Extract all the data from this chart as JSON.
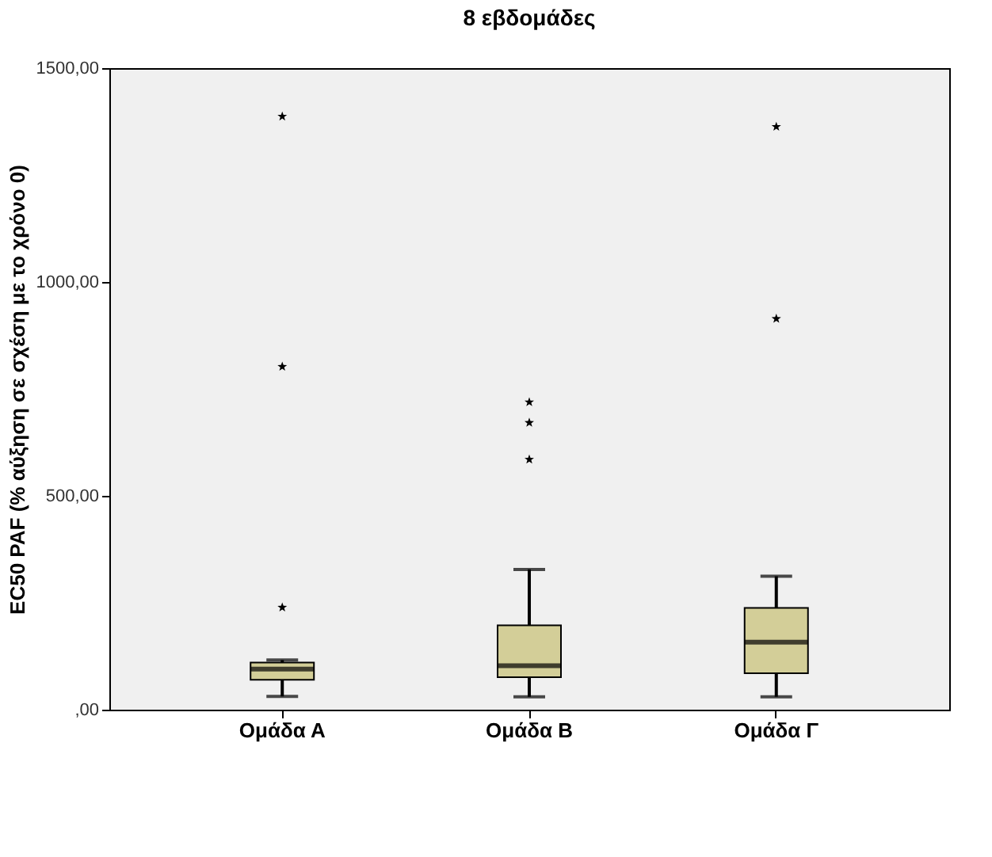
{
  "chart_data": {
    "type": "box",
    "title": "8 εβδομάδες",
    "ylabel": "EC50 PAF (% αύξηση σε σχέση με το χρόνο 0)",
    "categories": [
      "Ομάδα Α",
      "Ομάδα Β",
      "Ομάδα Γ"
    ],
    "boxes": [
      {
        "low": 31,
        "q1": 70,
        "median": 95,
        "q3": 110,
        "high": 116,
        "outliers": [
          239,
          802,
          1387
        ]
      },
      {
        "low": 30,
        "q1": 76,
        "median": 103,
        "q3": 197,
        "high": 328,
        "outliers": [
          585,
          671,
          719
        ]
      },
      {
        "low": 30,
        "q1": 85,
        "median": 158,
        "q3": 238,
        "high": 312,
        "outliers": [
          914,
          1363
        ]
      }
    ],
    "color": "#d3ce98",
    "marker": "star",
    "grid": false,
    "ylim": [
      0,
      1500
    ],
    "yticks": [
      {
        "value": 0,
        "label": ",00"
      },
      {
        "value": 500,
        "label": "500,00"
      },
      {
        "value": 1000,
        "label": "1000,00"
      },
      {
        "value": 1500,
        "label": "1500,00"
      }
    ]
  }
}
